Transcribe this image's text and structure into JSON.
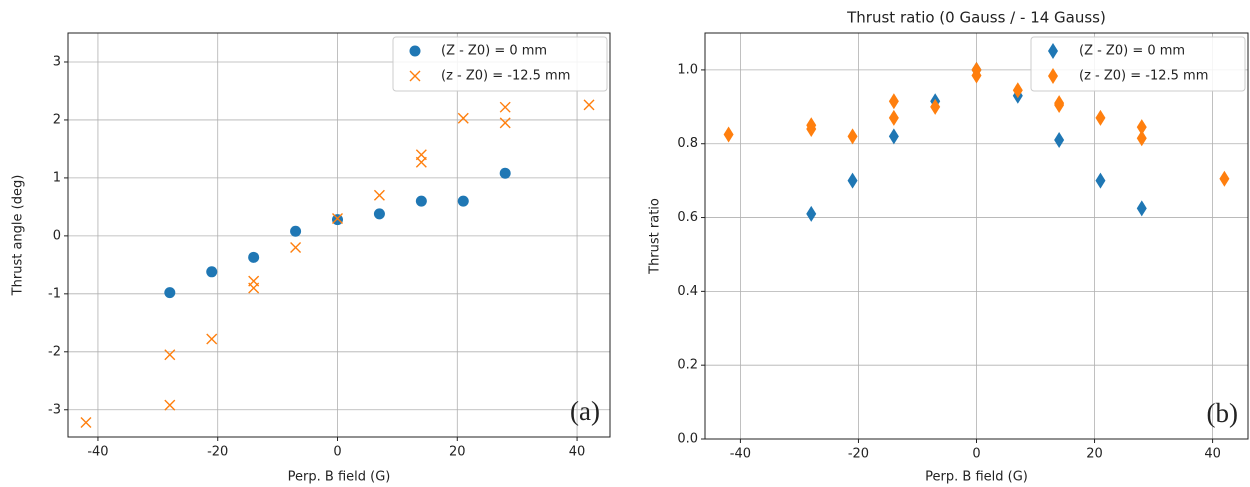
{
  "chart_data": [
    {
      "type": "scatter",
      "xlabel": "Perp. B field (G)",
      "ylabel": "Thrust angle (deg)",
      "annotation": "(a)",
      "xlim": [
        -45,
        45.5
      ],
      "ylim": [
        -3.47,
        3.5
      ],
      "xticks": [
        -40,
        -20,
        0,
        20,
        40
      ],
      "yticks": [
        -3,
        -2,
        -1,
        0,
        1,
        2,
        3
      ],
      "grid": true,
      "legend": "upper right",
      "series": [
        {
          "name": "(Z - Z0) = 0 mm",
          "color": "#1f77b4",
          "marker": "o",
          "x": [
            -28,
            -21,
            -14,
            -7,
            0,
            7,
            14,
            21,
            28
          ],
          "values": [
            -0.98,
            -0.62,
            -0.37,
            0.08,
            0.28,
            0.38,
            0.6,
            0.6,
            1.08
          ]
        },
        {
          "name": "(z - Z0) = -12.5 mm",
          "color": "#ff7f0e",
          "marker": "x",
          "x": [
            -42,
            -28,
            -28,
            -21,
            -14,
            -14,
            -7,
            0,
            7,
            14,
            14,
            21,
            28,
            28,
            42
          ],
          "values": [
            -3.22,
            -2.05,
            -2.92,
            -1.78,
            -0.78,
            -0.9,
            -0.2,
            0.3,
            0.7,
            1.4,
            1.27,
            2.03,
            2.22,
            1.95,
            2.26
          ]
        }
      ]
    },
    {
      "type": "scatter",
      "title": "Thrust ratio (0 Gauss / - 14 Gauss)",
      "xlabel": "Perp. B field (G)",
      "ylabel": "Thrust ratio",
      "annotation": "(b)",
      "xlim": [
        -46,
        46
      ],
      "ylim": [
        0,
        1.1
      ],
      "xticks": [
        -40,
        -20,
        0,
        20,
        40
      ],
      "yticks": [
        {
          "value": 0,
          "label": "0.0"
        },
        0.2,
        0.4,
        0.6,
        0.8,
        {
          "value": 1,
          "label": "1.0"
        }
      ],
      "grid": true,
      "legend": "upper right",
      "series": [
        {
          "name": "(Z - Z0) = 0 mm",
          "color": "#1f77b4",
          "marker": "d",
          "x": [
            -28,
            -21,
            -14,
            -7,
            0,
            7,
            14,
            21,
            28
          ],
          "values": [
            0.61,
            0.7,
            0.82,
            0.915,
            1.0,
            0.93,
            0.81,
            0.7,
            0.625
          ]
        },
        {
          "name": "(z - Z0) = -12.5 mm",
          "color": "#ff7f0e",
          "marker": "d",
          "x": [
            -42,
            -28,
            -28,
            -21,
            -14,
            -14,
            -7,
            0,
            0,
            7,
            14,
            14,
            21,
            28,
            28,
            42
          ],
          "values": [
            0.825,
            0.85,
            0.84,
            0.82,
            0.915,
            0.87,
            0.9,
            1.0,
            0.985,
            0.945,
            0.91,
            0.905,
            0.87,
            0.845,
            0.815,
            0.705
          ]
        }
      ]
    }
  ]
}
